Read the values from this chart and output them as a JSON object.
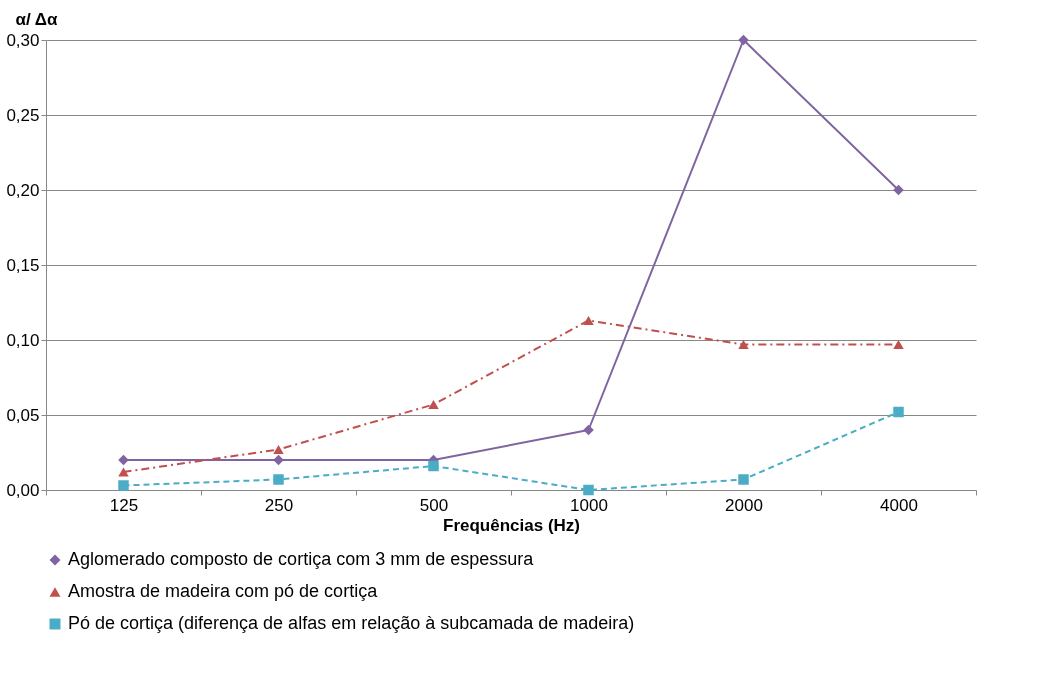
{
  "chart_data": {
    "type": "line",
    "xlabel": "Frequências (Hz)",
    "ylabel": "α/ Δα",
    "categories": [
      "125",
      "250",
      "500",
      "1000",
      "2000",
      "4000"
    ],
    "series": [
      {
        "name": "Aglomerado composto de cortiça com 3 mm de espessura",
        "color": "#8064a2",
        "marker": "diamond",
        "line_style": "solid",
        "values": [
          0.02,
          0.02,
          0.02,
          0.04,
          0.3,
          0.2
        ]
      },
      {
        "name": "Amostra de madeira com pó de cortiça",
        "color": "#c0504d",
        "marker": "triangle",
        "line_style": "dashdot",
        "values": [
          0.012,
          0.027,
          0.057,
          0.113,
          0.097,
          0.097
        ]
      },
      {
        "name": "Pó de cortiça (diferença de alfas em relação à subcamada de madeira)",
        "color": "#4bacc6",
        "marker": "square",
        "line_style": "dashed",
        "values": [
          0.003,
          0.007,
          0.016,
          0.0,
          0.007,
          0.052
        ]
      }
    ],
    "ylim": [
      0,
      0.3
    ],
    "yticks": [
      {
        "value": 0,
        "label": "0,00"
      },
      {
        "value": 0.05,
        "label": "0,05"
      },
      {
        "value": 0.1,
        "label": "0,10"
      },
      {
        "value": 0.15,
        "label": "0,15"
      },
      {
        "value": 0.2,
        "label": "0,20"
      },
      {
        "value": 0.25,
        "label": "0,25"
      },
      {
        "value": 0.3,
        "label": "0,30"
      }
    ],
    "grid": "y",
    "legend": "bottom"
  }
}
